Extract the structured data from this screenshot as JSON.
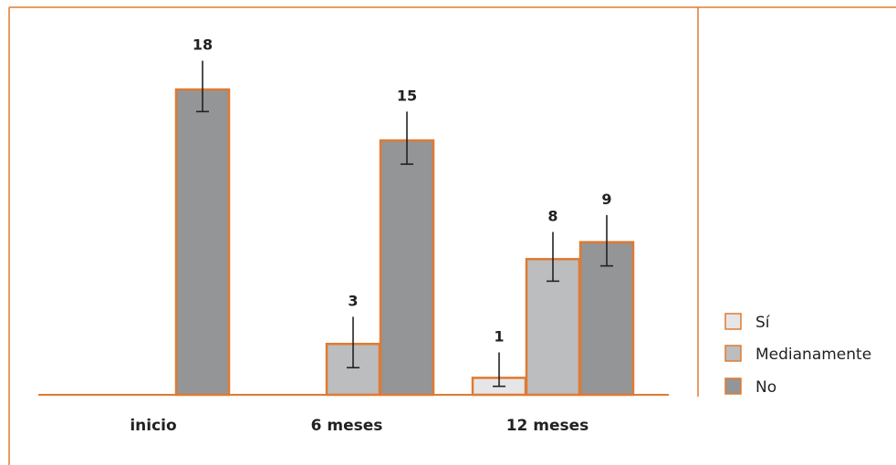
{
  "chart_data": {
    "type": "bar",
    "categories": [
      "inicio",
      "6 meses",
      "12 meses"
    ],
    "series": [
      {
        "name": "Sí",
        "values": [
          null,
          null,
          1
        ]
      },
      {
        "name": "Medianamente",
        "values": [
          null,
          3,
          8
        ]
      },
      {
        "name": "No",
        "values": [
          18,
          15,
          9
        ]
      }
    ],
    "error_bars": [
      {
        "series": "Sí",
        "values": [
          null,
          null,
          [
            0.5,
            2.5
          ]
        ]
      },
      {
        "series": "Medianamente",
        "values": [
          null,
          [
            1.6,
            4.6
          ],
          [
            6.7,
            9.6
          ]
        ]
      },
      {
        "name": "No",
        "series": "No",
        "values": [
          [
            16.7,
            19.7
          ],
          [
            13.6,
            16.7
          ],
          [
            7.6,
            10.6
          ]
        ]
      }
    ],
    "ylim": [
      0,
      20
    ],
    "grid": false,
    "legend_position": "right",
    "colors": {
      "Sí": "#e6e6e9",
      "Medianamente": "#bcbdbf",
      "No": "#939597",
      "border": "#e07a30",
      "error_bar": "#222222"
    }
  }
}
